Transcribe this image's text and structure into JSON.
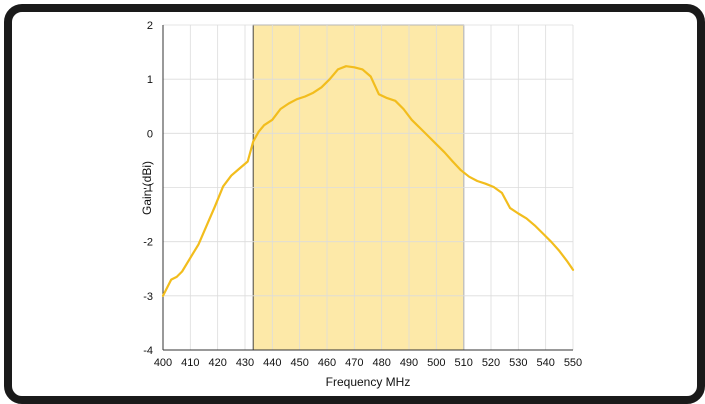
{
  "chart_data": {
    "type": "line",
    "title": "",
    "xlabel": "Frequency MHz",
    "ylabel": "Gain (dBi)",
    "xlim": [
      400,
      550
    ],
    "ylim": [
      -4,
      2
    ],
    "xticks": [
      400,
      410,
      420,
      430,
      440,
      450,
      460,
      470,
      480,
      490,
      500,
      510,
      520,
      530,
      540,
      550
    ],
    "yticks": [
      -4,
      -3,
      -2,
      -1,
      0,
      1,
      2
    ],
    "grid": true,
    "highlight_band": {
      "x_start": 433,
      "x_end": 510,
      "color": "#fde9a8"
    },
    "series": [
      {
        "name": "",
        "color": "#f2bd1d",
        "x": [
          400,
          403,
          405,
          407,
          410,
          413,
          416,
          419,
          422,
          425,
          428,
          431,
          433,
          435,
          437,
          440,
          443,
          446,
          449,
          452,
          455,
          458,
          461,
          464,
          467,
          470,
          473,
          476,
          479,
          482,
          485,
          488,
          491,
          494,
          497,
          500,
          503,
          506,
          509,
          512,
          515,
          518,
          521,
          524,
          527,
          530,
          533,
          536,
          539,
          542,
          545,
          548,
          550
        ],
        "y": [
          -3.0,
          -2.7,
          -2.65,
          -2.55,
          -2.3,
          -2.05,
          -1.7,
          -1.35,
          -0.98,
          -0.78,
          -0.65,
          -0.52,
          -0.15,
          0.03,
          0.15,
          0.25,
          0.45,
          0.55,
          0.63,
          0.68,
          0.75,
          0.85,
          1.0,
          1.18,
          1.24,
          1.22,
          1.18,
          1.05,
          0.72,
          0.65,
          0.6,
          0.45,
          0.25,
          0.1,
          -0.05,
          -0.2,
          -0.35,
          -0.52,
          -0.68,
          -0.8,
          -0.88,
          -0.93,
          -0.99,
          -1.1,
          -1.38,
          -1.48,
          -1.57,
          -1.7,
          -1.85,
          -2.0,
          -2.17,
          -2.37,
          -2.52
        ]
      }
    ]
  }
}
